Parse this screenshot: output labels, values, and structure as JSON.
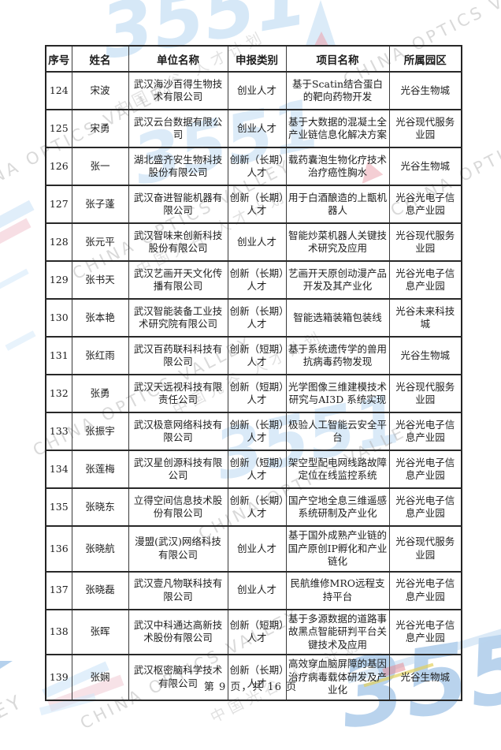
{
  "watermark": {
    "brand": "3551",
    "en_text": "CHINA OPTICS VALLEY",
    "en_text_tail": "EY",
    "cn_text": "中国光谷 人才计划",
    "colors": {
      "light_blue": "#9ec7ec",
      "gray": "#aaaaaa",
      "pink": "#eca0ac",
      "yellow": "#e2d05c"
    }
  },
  "table": {
    "columns": [
      "序号",
      "姓名",
      "单位名称",
      "申报类别",
      "项目名称",
      "所属园区"
    ],
    "column_keys": [
      "no",
      "name",
      "company",
      "category",
      "project",
      "park"
    ],
    "rows": [
      [
        "124",
        "宋波",
        "武汉海沙百得生物技术有限公司",
        "创业人才",
        "基于Scatin结合蛋白的靶向药物开发",
        "光谷生物城"
      ],
      [
        "125",
        "宋勇",
        "武汉云台数据有限公司",
        "创业人才",
        "基于大数据的混凝土全产业链信息化解决方案",
        "光谷现代服务业园"
      ],
      [
        "126",
        "张一",
        "湖北盛齐安生物科技股份有限公司",
        "创新（长期）人才",
        "载药囊泡生物化疗技术治疗癌性胸水",
        "光谷生物城"
      ],
      [
        "127",
        "张子蓬",
        "武汉奋进智能机器有限公司",
        "创新（长期）人才",
        "用于白酒酿造的上甑机器人",
        "光谷光电子信息产业园"
      ],
      [
        "128",
        "张元平",
        "武汉智味来创新科技股份有限公司",
        "创业人才",
        "智能炒菜机器人关键技术研究及应用",
        "光谷现代服务业园"
      ],
      [
        "129",
        "张书天",
        "武汉艺画开天文化传播有限公司",
        "创新（长期）人才",
        "艺画开天原创动漫产品开发及其产业化",
        "光谷光电子信息产业园"
      ],
      [
        "130",
        "张本艳",
        "武汉智能装备工业技术研究院有限公司",
        "创新（长期）人才",
        "智能选箱装箱包装线",
        "光谷未来科技城"
      ],
      [
        "131",
        "张红雨",
        "武汉百药联科科技有限公司",
        "创新（短期）人才",
        "基于系统遗传学的兽用抗病毒药物发现",
        "光谷生物城"
      ],
      [
        "132",
        "张勇",
        "武汉天远视科技有限责任公司",
        "创新（短期）人才",
        "光学图像三维建模技术研究与AI3D 系统实现",
        "光谷现代服务业园"
      ],
      [
        "133",
        "张振宇",
        "武汉极意网络科技有限公司",
        "创新（长期）人才",
        "极验人工智能云安全平台",
        "光谷光电子信息产业园"
      ],
      [
        "134",
        "张莲梅",
        "武汉星创源科技有限公司",
        "创新（短期）人才",
        "架空型配电网线路故障定位在线监控系统",
        "光谷光电子信息产业园"
      ],
      [
        "135",
        "张晓东",
        "立得空间信息技术股份有限公司",
        "创新（长期）人才",
        "国产空地全息三维遥感系统研制及产业化",
        "光谷光电子信息产业园"
      ],
      [
        "136",
        "张晓航",
        "漫盟(武汉)网络科技有限公司",
        "创业人才",
        "基于国外成熟产业链的国产原创IP孵化和产业链化",
        "光谷现代服务业园"
      ],
      [
        "137",
        "张晓磊",
        "武汉壹凡物联科技有限公司",
        "创业人才",
        "民航维修MRO远程支持平台",
        "光谷光电子信息产业园"
      ],
      [
        "138",
        "张晖",
        "武汉中科通达高新技术股份有限公司",
        "创新（短期）人才",
        "基于多源数据的道路事故黑点智能研判平台关键技术及应用",
        "光谷光电子信息产业园"
      ],
      [
        "139",
        "张娴",
        "武汉枢密脑科学技术有限公司",
        "创新（长期）人才",
        "高效穿血脑屏障的基因治疗病毒载体研发及产业化",
        "光谷生物城"
      ]
    ]
  },
  "footer": {
    "page_label": "第 9 页，共 16 页"
  }
}
